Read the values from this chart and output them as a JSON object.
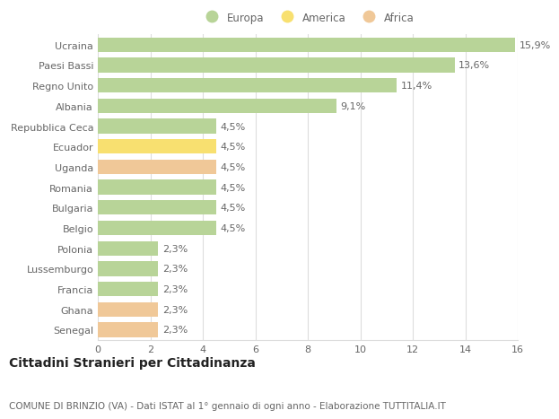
{
  "countries": [
    "Senegal",
    "Ghana",
    "Francia",
    "Lussemburgo",
    "Polonia",
    "Belgio",
    "Bulgaria",
    "Romania",
    "Uganda",
    "Ecuador",
    "Repubblica Ceca",
    "Albania",
    "Regno Unito",
    "Paesi Bassi",
    "Ucraina"
  ],
  "values": [
    2.3,
    2.3,
    2.3,
    2.3,
    2.3,
    4.5,
    4.5,
    4.5,
    4.5,
    4.5,
    4.5,
    9.1,
    11.4,
    13.6,
    15.9
  ],
  "labels": [
    "2,3%",
    "2,3%",
    "2,3%",
    "2,3%",
    "2,3%",
    "4,5%",
    "4,5%",
    "4,5%",
    "4,5%",
    "4,5%",
    "4,5%",
    "9,1%",
    "11,4%",
    "13,6%",
    "15,9%"
  ],
  "colors": [
    "#f0c898",
    "#f0c898",
    "#b8d498",
    "#b8d498",
    "#b8d498",
    "#b8d498",
    "#b8d498",
    "#b8d498",
    "#f0c898",
    "#f8e070",
    "#b8d498",
    "#b8d498",
    "#b8d498",
    "#b8d498",
    "#b8d498"
  ],
  "legend_labels": [
    "Europa",
    "America",
    "Africa"
  ],
  "legend_colors": [
    "#b8d498",
    "#f8e070",
    "#f0c898"
  ],
  "title": "Cittadini Stranieri per Cittadinanza",
  "subtitle": "COMUNE DI BRINZIO (VA) - Dati ISTAT al 1° gennaio di ogni anno - Elaborazione TUTTITALIA.IT",
  "xlim": [
    0,
    16
  ],
  "xticks": [
    0,
    2,
    4,
    6,
    8,
    10,
    12,
    14,
    16
  ],
  "bg_color": "#ffffff",
  "bar_height": 0.72,
  "grid_color": "#dddddd",
  "text_color": "#666666",
  "label_fontsize": 8,
  "tick_fontsize": 8,
  "title_fontsize": 10,
  "subtitle_fontsize": 7.5
}
